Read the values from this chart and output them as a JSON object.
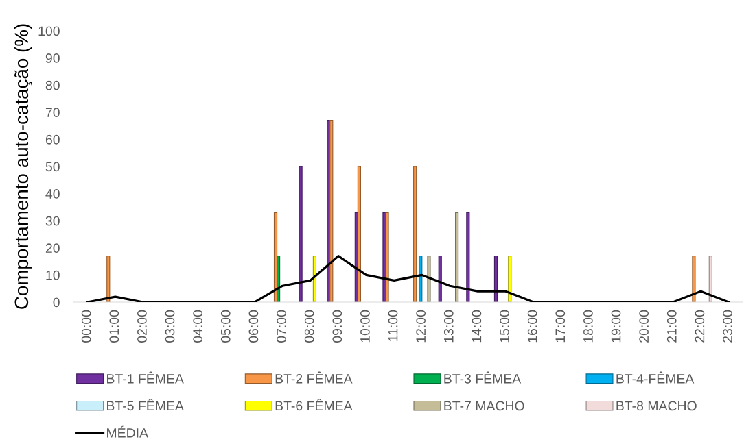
{
  "chart_data": {
    "type": "bar",
    "ylabel": "Comportamento auto-catação (%)",
    "categories": [
      "00:00",
      "01:00",
      "02:00",
      "03:00",
      "04:00",
      "05:00",
      "06:00",
      "07:00",
      "08:00",
      "09:00",
      "10:00",
      "11:00",
      "12:00",
      "13:00",
      "14:00",
      "15:00",
      "16:00",
      "17:00",
      "18:00",
      "19:00",
      "20:00",
      "21:00",
      "22:00",
      "23:00"
    ],
    "ylim": [
      0,
      100
    ],
    "yticks": [
      0,
      10,
      20,
      30,
      40,
      50,
      60,
      70,
      80,
      90,
      100
    ],
    "legend": "bottom",
    "series": [
      {
        "name": "BT-1 FÊMEA",
        "color": "#7030a0",
        "values": [
          null,
          null,
          null,
          null,
          null,
          null,
          null,
          null,
          50,
          67,
          33,
          33,
          null,
          17,
          33,
          17,
          null,
          null,
          null,
          null,
          null,
          null,
          null,
          null
        ]
      },
      {
        "name": "BT-2 FÊMEA",
        "color": "#f79646",
        "values": [
          null,
          17,
          null,
          null,
          null,
          null,
          null,
          33,
          null,
          67,
          50,
          33,
          50,
          null,
          null,
          null,
          null,
          null,
          null,
          null,
          null,
          null,
          17,
          null
        ]
      },
      {
        "name": "BT-3 FÊMEA",
        "color": "#00b050",
        "values": [
          null,
          null,
          null,
          null,
          null,
          null,
          null,
          17,
          null,
          null,
          null,
          null,
          null,
          null,
          null,
          null,
          null,
          null,
          null,
          null,
          null,
          null,
          null,
          null
        ]
      },
      {
        "name": "BT-4-FÊMEA",
        "color": "#00b0f0",
        "values": [
          null,
          null,
          null,
          null,
          null,
          null,
          null,
          null,
          null,
          null,
          null,
          null,
          17,
          null,
          null,
          null,
          null,
          null,
          null,
          null,
          null,
          null,
          null,
          null
        ]
      },
      {
        "name": "BT-5 FÊMEA",
        "color": "#c9effb",
        "values": [
          null,
          null,
          null,
          null,
          null,
          null,
          null,
          null,
          null,
          null,
          null,
          null,
          null,
          null,
          null,
          null,
          null,
          null,
          null,
          null,
          null,
          null,
          null,
          null
        ]
      },
      {
        "name": "BT-6 FÊMEA",
        "color": "#ffff00",
        "values": [
          null,
          null,
          null,
          null,
          null,
          null,
          null,
          null,
          17,
          null,
          null,
          null,
          null,
          null,
          null,
          17,
          null,
          null,
          null,
          null,
          null,
          null,
          null,
          null
        ]
      },
      {
        "name": "BT-7 MACHO",
        "color": "#c4bd97",
        "values": [
          null,
          null,
          null,
          null,
          null,
          null,
          null,
          null,
          null,
          null,
          null,
          null,
          17,
          33,
          null,
          null,
          null,
          null,
          null,
          null,
          null,
          null,
          null,
          null
        ]
      },
      {
        "name": "BT-8 MACHO",
        "color": "#f2dcdb",
        "values": [
          null,
          null,
          null,
          null,
          null,
          null,
          null,
          null,
          null,
          null,
          null,
          null,
          null,
          null,
          null,
          null,
          null,
          null,
          null,
          null,
          null,
          null,
          17,
          null
        ]
      },
      {
        "name": "MÉDIA",
        "type": "line",
        "color": "#000000",
        "values": [
          0,
          2,
          0,
          0,
          0,
          0,
          0,
          6,
          8,
          17,
          10,
          8,
          10,
          6,
          4,
          4,
          0,
          0,
          0,
          0,
          0,
          0,
          4,
          0
        ]
      }
    ]
  }
}
